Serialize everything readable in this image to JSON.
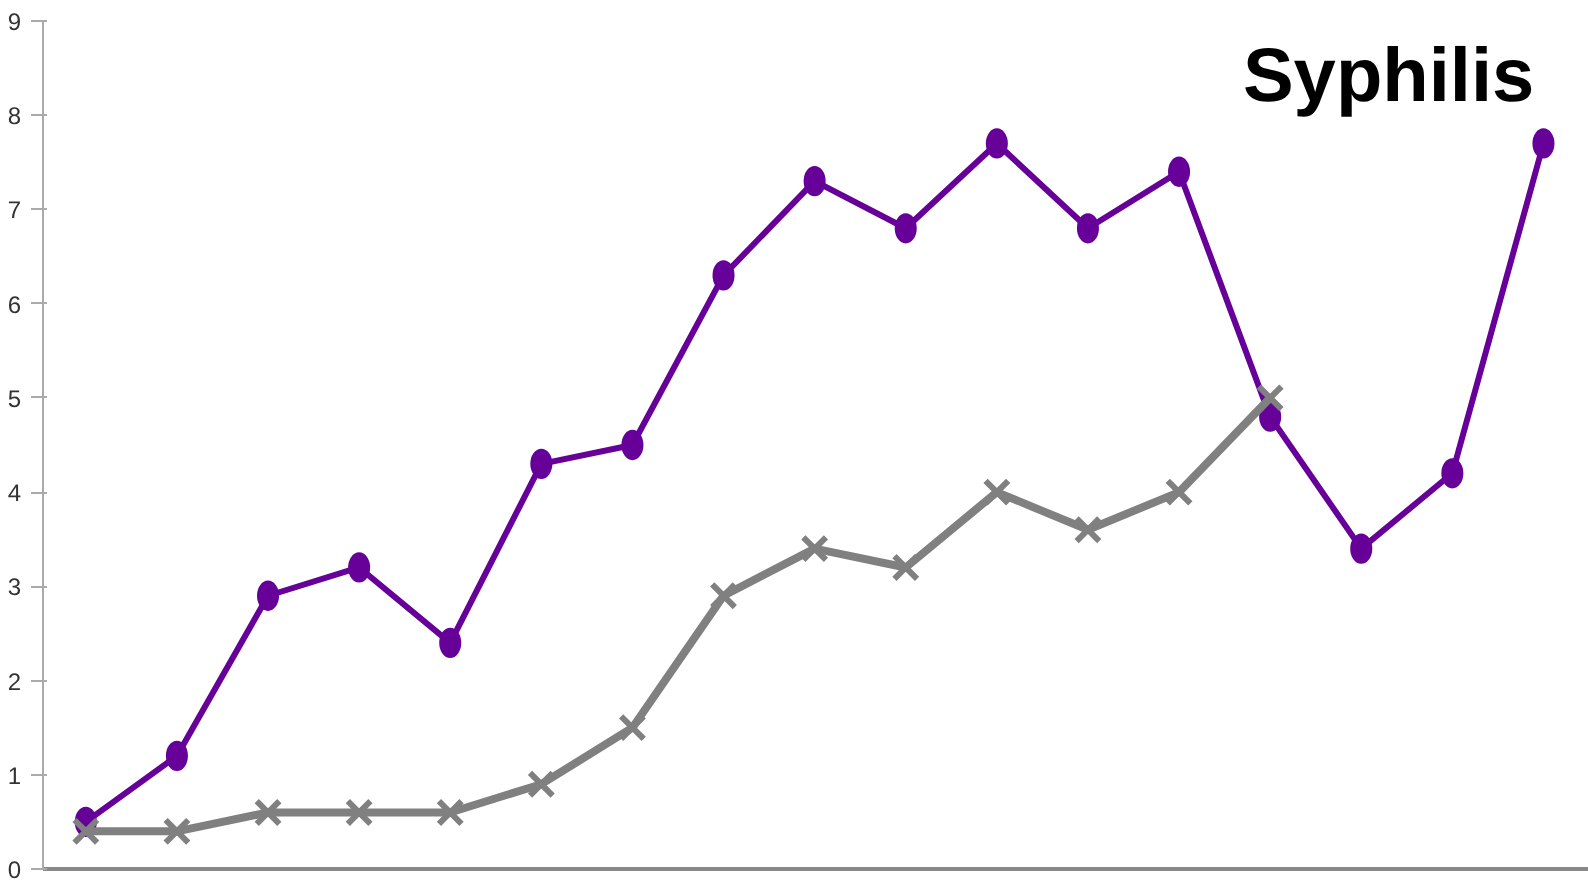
{
  "chart_data": {
    "type": "line",
    "title": "Syphilis",
    "categories": [
      null,
      null,
      null,
      null,
      null,
      null,
      null,
      null,
      null,
      null,
      null,
      null,
      null,
      null,
      null,
      null,
      null
    ],
    "series": [
      {
        "color": "#660099",
        "marker": "circle",
        "values": [
          0.5,
          1.2,
          2.9,
          3.2,
          2.4,
          4.3,
          4.5,
          6.3,
          7.3,
          6.8,
          7.7,
          6.8,
          7.4,
          4.8,
          3.4,
          4.2,
          7.7
        ]
      },
      {
        "color": "#808080",
        "marker": "cross",
        "values": [
          0.4,
          0.4,
          0.6,
          0.6,
          0.6,
          0.9,
          1.5,
          2.9,
          3.4,
          3.2,
          4.0,
          3.6,
          4.0,
          5.0,
          null,
          null,
          null
        ]
      }
    ],
    "ylim": [
      0,
      9
    ],
    "yticks": [
      0,
      1,
      2,
      3,
      4,
      5,
      6,
      7,
      8,
      9
    ],
    "grid": false,
    "line_style": "solid"
  }
}
